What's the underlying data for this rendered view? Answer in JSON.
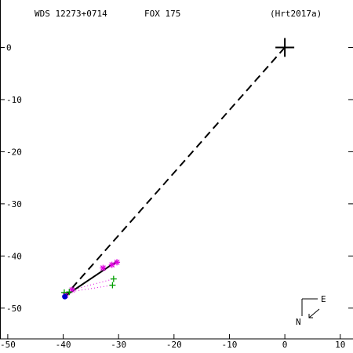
{
  "header": {
    "left": "WDS 12273+0714",
    "center": "FOX 175",
    "right": "(Hrt2017a)"
  },
  "compass": {
    "east": "E",
    "north": "N"
  },
  "colors": {
    "axis": "#000000",
    "fit_line": "#000000",
    "measurement_magenta": "#e000e0",
    "measurement_green": "#00a000",
    "measurement_blue": "#0000cc"
  },
  "chart_data": {
    "type": "scatter",
    "x_ticks": [
      -50,
      -40,
      -30,
      -20,
      -10,
      0,
      10
    ],
    "y_ticks": [
      0,
      -10,
      -20,
      -30,
      -40,
      -50
    ],
    "xlim": [
      -51.4,
      12.3
    ],
    "ylim": [
      -55.9,
      9.1
    ],
    "origin_marker": {
      "x": 0,
      "y": 0
    },
    "series": [
      {
        "marker": "star",
        "color": "#e000e0",
        "points": [
          [
            -30.3,
            -41.2
          ],
          [
            -31.2,
            -41.7
          ],
          [
            -32.8,
            -42.3
          ],
          [
            -38.4,
            -46.5
          ],
          [
            -39.6,
            -47.6
          ]
        ]
      },
      {
        "marker": "plus",
        "color": "#00a000",
        "points": [
          [
            -30.9,
            -44.4
          ],
          [
            -31.1,
            -45.6
          ],
          [
            -38.9,
            -46.9
          ],
          [
            -39.8,
            -47.0
          ]
        ]
      },
      {
        "marker": "dot",
        "color": "#0000cc",
        "points": [
          [
            -39.7,
            -47.8
          ]
        ]
      }
    ],
    "fit_line": [
      [
        -30.3,
        -41.0
      ],
      [
        -39.7,
        -47.7
      ]
    ],
    "dashed_line": [
      [
        0,
        0
      ],
      [
        -39.7,
        -47.7
      ]
    ],
    "dotted_links": [
      [
        [
          -38.4,
          -46.5
        ],
        [
          -30.9,
          -44.4
        ]
      ],
      [
        [
          -38.9,
          -46.9
        ],
        [
          -31.1,
          -45.6
        ]
      ]
    ]
  }
}
